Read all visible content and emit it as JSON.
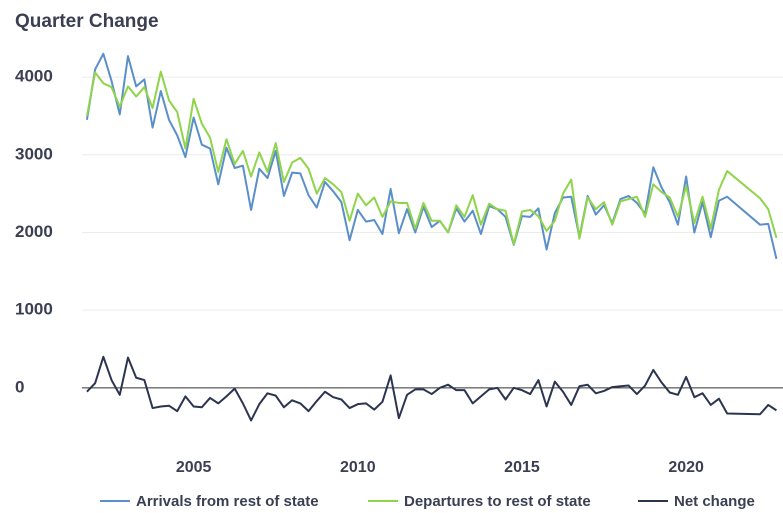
{
  "chart_data": {
    "type": "line",
    "title": "Quarter Change",
    "x": [
      2001.75,
      2002,
      2002.25,
      2002.5,
      2002.75,
      2003,
      2003.25,
      2003.5,
      2003.75,
      2004,
      2004.25,
      2004.5,
      2004.75,
      2005,
      2005.25,
      2005.5,
      2005.75,
      2006,
      2006.25,
      2006.5,
      2006.75,
      2007,
      2007.25,
      2007.5,
      2007.75,
      2008,
      2008.25,
      2008.5,
      2008.75,
      2009,
      2009.25,
      2009.5,
      2009.75,
      2010,
      2010.25,
      2010.5,
      2010.75,
      2011,
      2011.25,
      2011.5,
      2011.75,
      2012,
      2012.25,
      2012.5,
      2012.75,
      2013,
      2013.25,
      2013.5,
      2013.75,
      2014,
      2014.25,
      2014.5,
      2014.75,
      2015,
      2015.25,
      2015.5,
      2015.75,
      2016,
      2016.25,
      2016.5,
      2016.75,
      2017,
      2017.25,
      2017.5,
      2017.75,
      2018,
      2018.25,
      2018.5,
      2018.75,
      2019,
      2019.25,
      2019.5,
      2019.75,
      2020,
      2020.25,
      2020.5,
      2020.75,
      2021,
      2021.25,
      2022.25,
      2022.5,
      2022.75
    ],
    "series": [
      {
        "name": "Arrivals from rest of state",
        "color": "#5b8fc9",
        "values": [
          3450,
          4100,
          4300,
          3950,
          3520,
          4270,
          3880,
          3970,
          3350,
          3820,
          3450,
          3250,
          2970,
          3480,
          3130,
          3080,
          2620,
          3090,
          2830,
          2860,
          2290,
          2820,
          2700,
          3050,
          2470,
          2770,
          2760,
          2480,
          2320,
          2650,
          2530,
          2390,
          1900,
          2290,
          2140,
          2160,
          1980,
          2560,
          1990,
          2300,
          2000,
          2330,
          2070,
          2150,
          2000,
          2310,
          2140,
          2280,
          1980,
          2340,
          2300,
          2200,
          1840,
          2210,
          2200,
          2310,
          1780,
          2250,
          2450,
          2460,
          1940,
          2470,
          2230,
          2350,
          2120,
          2430,
          2470,
          2380,
          2240,
          2840,
          2580,
          2390,
          2100,
          2720,
          2000,
          2390,
          1940,
          2410,
          2460,
          2100,
          2110,
          1660
        ]
      },
      {
        "name": "Departures to rest of state",
        "color": "#8fd44a",
        "values": [
          3500,
          4060,
          3920,
          3870,
          3620,
          3880,
          3750,
          3870,
          3600,
          4070,
          3700,
          3550,
          3080,
          3720,
          3400,
          3220,
          2780,
          3200,
          2880,
          3050,
          2720,
          3030,
          2780,
          3150,
          2650,
          2900,
          2960,
          2820,
          2500,
          2700,
          2620,
          2520,
          2150,
          2500,
          2350,
          2450,
          2200,
          2400,
          2380,
          2380,
          2050,
          2380,
          2150,
          2150,
          2000,
          2350,
          2200,
          2480,
          2100,
          2370,
          2300,
          2280,
          1850,
          2270,
          2290,
          2210,
          2020,
          2150,
          2500,
          2680,
          1920,
          2450,
          2300,
          2390,
          2100,
          2400,
          2430,
          2460,
          2200,
          2620,
          2520,
          2450,
          2200,
          2600,
          2120,
          2460,
          2050,
          2550,
          2790,
          2440,
          2300,
          1930
        ]
      },
      {
        "name": "Net change",
        "color": "#2b3550",
        "values": [
          -50,
          60,
          400,
          100,
          -90,
          390,
          130,
          100,
          -260,
          -240,
          -230,
          -300,
          -110,
          -240,
          -250,
          -130,
          -200,
          -110,
          -10,
          -200,
          -420,
          -210,
          -70,
          -100,
          -250,
          -160,
          -200,
          -300,
          -170,
          -50,
          -120,
          -150,
          -260,
          -210,
          -200,
          -280,
          -180,
          160,
          -390,
          -90,
          -20,
          -20,
          -80,
          0,
          40,
          -30,
          -30,
          -200,
          -110,
          -20,
          0,
          -150,
          0,
          -30,
          -80,
          100,
          -240,
          80,
          -50,
          -220,
          20,
          40,
          -70,
          -40,
          10,
          20,
          30,
          -80,
          30,
          230,
          70,
          -60,
          -90,
          140,
          -120,
          -70,
          -220,
          -140,
          -330,
          -340,
          -220,
          -290
        ]
      }
    ],
    "xlim": [
      2001.6,
      2022.95
    ],
    "xticks": [
      2005,
      2010,
      2015,
      2020
    ],
    "ylim": [
      -800,
      4400
    ],
    "yticks": [
      0,
      1000,
      2000,
      3000,
      4000
    ],
    "grid": true
  }
}
